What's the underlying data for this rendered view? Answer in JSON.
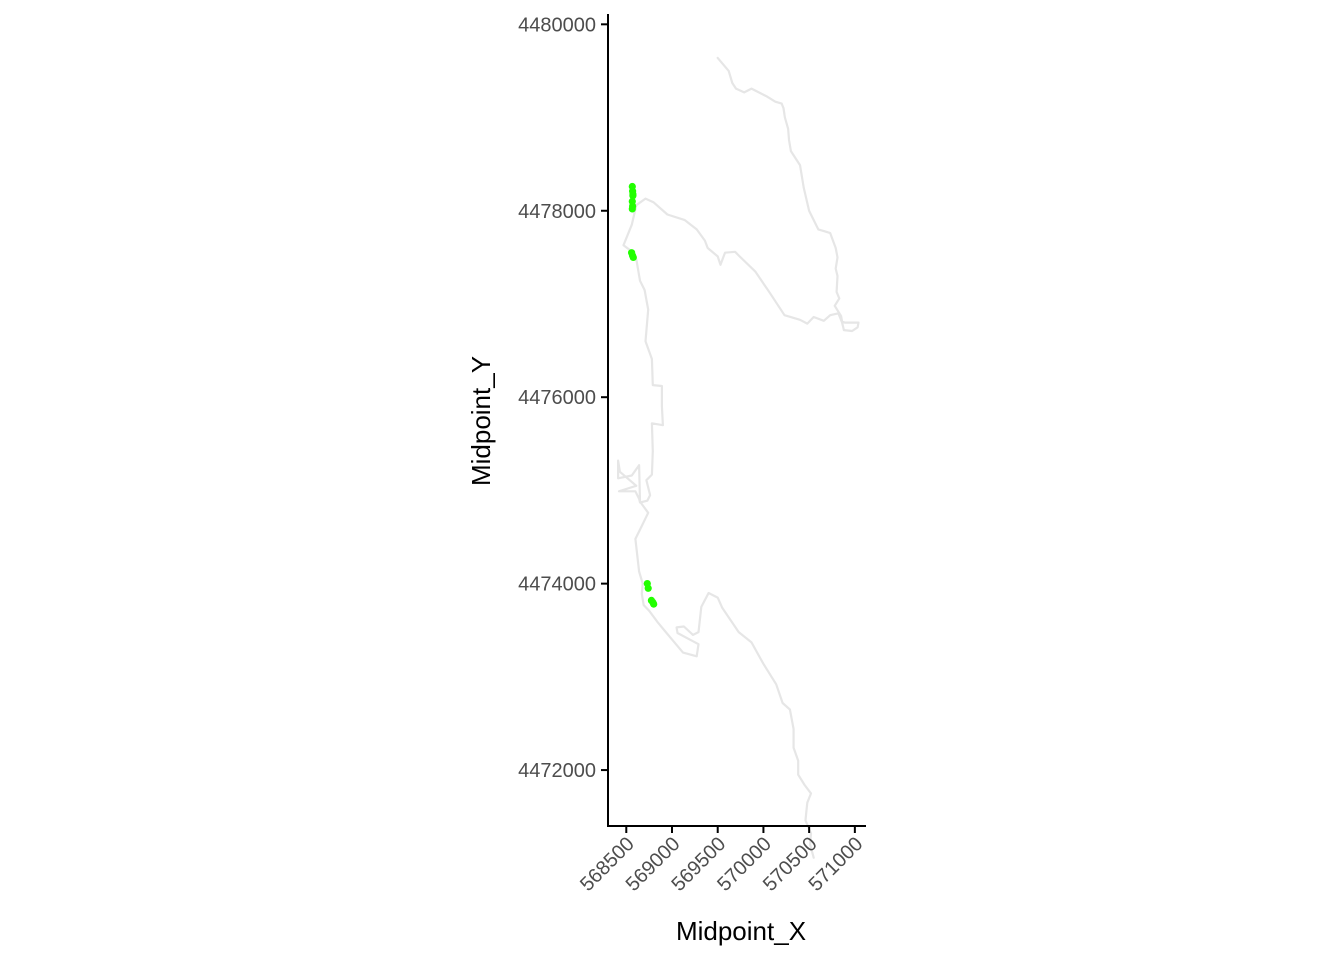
{
  "chart_data": {
    "type": "scatter",
    "title": "",
    "xlabel": "Midpoint_X",
    "ylabel": "Midpoint_Y",
    "xlim": [
      568300,
      571100
    ],
    "ylim": [
      4471400,
      4480100
    ],
    "x_ticks": [
      568500,
      569000,
      569500,
      570000,
      570500,
      571000
    ],
    "x_tick_labels": [
      "568500",
      "569000",
      "569500",
      "570000",
      "570500",
      "571000"
    ],
    "y_ticks": [
      4472000,
      4474000,
      4476000,
      4478000,
      4480000
    ],
    "y_tick_labels": [
      "4472000",
      "4474000",
      "4476000",
      "4478000",
      "4480000"
    ],
    "grid": false,
    "legend": "none",
    "colors": {
      "points": "#22ff00",
      "outline": "#e6e6e6",
      "axis": "#000000"
    },
    "series": [
      {
        "kind": "points",
        "x": [
          568566,
          568569,
          568572,
          568566,
          568569,
          568566,
          568572,
          568558,
          568568,
          568577,
          568730,
          568740,
          568775,
          568800,
          568790
        ],
        "y": [
          4478260,
          4478210,
          4478160,
          4478100,
          4478050,
          4478020,
          4478180,
          4477550,
          4477520,
          4477500,
          4474000,
          4473950,
          4473820,
          4473780,
          4473800
        ]
      },
      {
        "kind": "outline",
        "x": [
          569500,
          569620,
          569660,
          569700,
          569790,
          569870,
          570030,
          570130,
          570200,
          570220,
          570235,
          570270,
          570280,
          570300,
          570400,
          570440,
          570500,
          570600,
          570670,
          570730,
          570790,
          570810,
          570790,
          570810,
          570800,
          570830,
          570780,
          570850,
          570860,
          570890,
          571040,
          571030,
          570970,
          570880,
          570860,
          570820,
          570730,
          570660,
          570550,
          570480,
          570400,
          570230,
          570070,
          569910,
          569730,
          569690,
          569580,
          569530,
          569500,
          569390,
          569360,
          569270,
          569140,
          568950,
          568800,
          568710,
          568610,
          568560,
          568470,
          568550,
          568610,
          568650,
          568700,
          568740,
          568710,
          568780,
          568790,
          568890,
          568890,
          568900,
          568780,
          568790,
          568780,
          568720,
          568760,
          568730,
          568650,
          568640,
          568600,
          568420,
          568610,
          568430,
          568410,
          568410,
          568560,
          568640,
          568650,
          568740,
          568700,
          568650,
          568600,
          568640,
          568680,
          568670,
          568690,
          568750,
          568840,
          568950,
          569120,
          569270,
          569290,
          569060,
          569050,
          569130,
          569230,
          569290,
          569320,
          569400,
          569500,
          569550,
          569730,
          569870,
          570000,
          570140,
          570210,
          570290,
          570330,
          570330,
          570380,
          570380,
          570450,
          570520,
          570480,
          570470,
          570460,
          570520,
          570510,
          570550
        ],
        "y": [
          4479640,
          4479500,
          4479370,
          4479310,
          4479270,
          4479310,
          4479230,
          4479170,
          4479150,
          4479100,
          4479000,
          4478880,
          4478760,
          4478640,
          4478490,
          4478250,
          4478000,
          4477800,
          4477780,
          4477760,
          4477600,
          4477500,
          4477380,
          4477300,
          4477130,
          4477060,
          4476980,
          4476870,
          4476810,
          4476800,
          4476800,
          4476750,
          4476710,
          4476720,
          4476800,
          4476900,
          4476880,
          4476820,
          4476860,
          4476790,
          4476830,
          4476880,
          4477120,
          4477350,
          4477520,
          4477560,
          4477550,
          4477420,
          4477510,
          4477600,
          4477680,
          4477800,
          4477900,
          4477960,
          4478090,
          4478130,
          4478060,
          4477850,
          4477630,
          4477570,
          4477480,
          4477250,
          4477150,
          4476940,
          4476600,
          4476410,
          4476130,
          4476120,
          4475900,
          4475700,
          4475720,
          4475420,
          4475170,
          4475110,
          4474950,
          4474890,
          4474870,
          4474910,
          4474990,
          4474990,
          4475050,
          4475200,
          4475320,
          4475130,
          4475160,
          4475270,
          4474880,
          4474760,
          4474680,
          4474580,
          4474480,
          4474130,
          4474000,
          4473890,
          4473770,
          4473710,
          4473590,
          4473460,
          4473260,
          4473220,
          4473350,
          4473470,
          4473530,
          4473540,
          4473450,
          4473480,
          4473750,
          4473900,
          4473850,
          4473740,
          4473480,
          4473370,
          4473140,
          4472920,
          4472720,
          4472650,
          4472440,
          4472240,
          4472100,
          4471950,
          4471840,
          4471750,
          4471650,
          4471560,
          4471460,
          4471320,
          4471200,
          4471060
        ]
      }
    ]
  }
}
